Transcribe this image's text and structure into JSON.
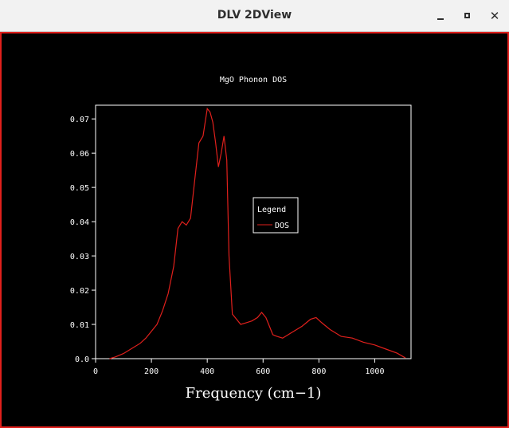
{
  "window": {
    "title": "DLV 2DView",
    "controls": {
      "minimize": "minimize",
      "maximize": "maximize",
      "close": "✕"
    }
  },
  "chart_data": {
    "type": "line",
    "title": "MgO Phonon DOS",
    "xlabel": "Frequency (cm−1)",
    "ylabel": "",
    "xlim": [
      0,
      1130
    ],
    "ylim": [
      0,
      0.074
    ],
    "xticks": [
      0,
      200,
      400,
      600,
      800,
      1000
    ],
    "yticks": [
      0.0,
      0.01,
      0.02,
      0.03,
      0.04,
      0.05,
      0.06,
      0.07
    ],
    "ytick_labels": [
      "0.0",
      "0.01",
      "0.02",
      "0.03",
      "0.04",
      "0.05",
      "0.06",
      "0.07"
    ],
    "xtick_labels": [
      "0",
      "200",
      "400",
      "600",
      "800",
      "1000"
    ],
    "legend": {
      "title": "Legend",
      "position": "center-right",
      "entries": [
        "DOS"
      ]
    },
    "series": [
      {
        "name": "DOS",
        "color": "#e0201c",
        "x": [
          50,
          70,
          100,
          130,
          160,
          180,
          200,
          220,
          240,
          260,
          280,
          295,
          310,
          325,
          340,
          355,
          370,
          385,
          400,
          410,
          420,
          430,
          440,
          450,
          460,
          470,
          478,
          490,
          500,
          520,
          540,
          560,
          580,
          595,
          610,
          620,
          635,
          650,
          670,
          700,
          740,
          770,
          790,
          810,
          840,
          880,
          920,
          960,
          1000,
          1040,
          1080,
          1110
        ],
        "y": [
          0.0,
          0.0005,
          0.0015,
          0.003,
          0.0045,
          0.006,
          0.008,
          0.01,
          0.014,
          0.019,
          0.027,
          0.038,
          0.04,
          0.039,
          0.041,
          0.052,
          0.063,
          0.065,
          0.073,
          0.072,
          0.069,
          0.063,
          0.056,
          0.06,
          0.065,
          0.058,
          0.03,
          0.013,
          0.012,
          0.01,
          0.0105,
          0.011,
          0.012,
          0.0135,
          0.012,
          0.01,
          0.007,
          0.0065,
          0.006,
          0.0075,
          0.0095,
          0.0115,
          0.012,
          0.0105,
          0.0085,
          0.0065,
          0.006,
          0.0048,
          0.004,
          0.0028,
          0.0016,
          0.0002
        ]
      }
    ]
  }
}
